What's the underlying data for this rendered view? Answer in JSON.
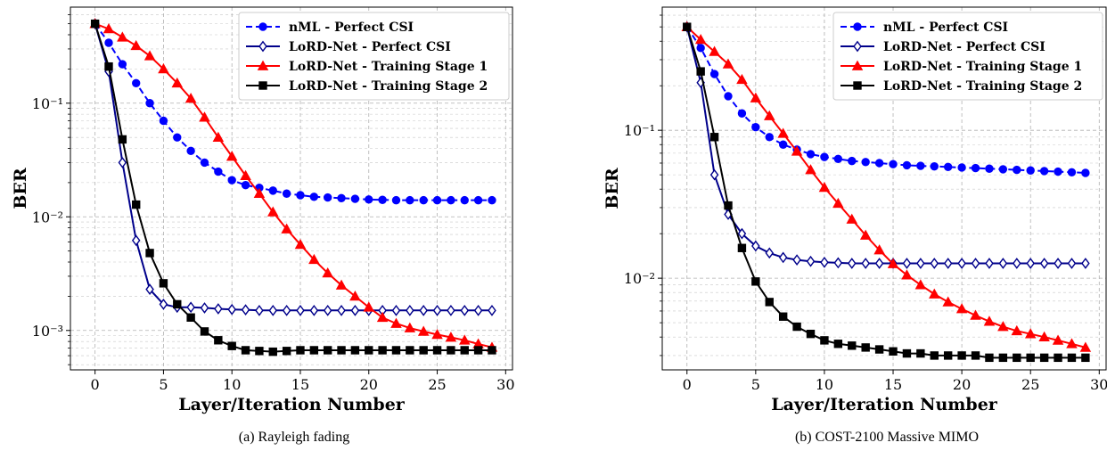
{
  "chart_data": [
    {
      "type": "line",
      "caption": "(a) Rayleigh fading",
      "xlabel": "Layer/Iteration Number",
      "ylabel": "BER",
      "yscale": "log",
      "grid": true,
      "legend_position": "top-right",
      "xlim": [
        -1.8,
        30.5
      ],
      "ylim": [
        0.00045,
        0.7
      ],
      "xticks": [
        0,
        5,
        10,
        15,
        20,
        25,
        30
      ],
      "yticks": [
        0.1,
        0.01,
        0.001
      ],
      "ytick_labels": [
        "10⁻¹",
        "10⁻²",
        "10⁻³"
      ],
      "x": [
        0,
        1,
        2,
        3,
        4,
        5,
        6,
        7,
        8,
        9,
        10,
        11,
        12,
        13,
        14,
        15,
        16,
        17,
        18,
        19,
        20,
        21,
        22,
        23,
        24,
        25,
        26,
        27,
        28,
        29
      ],
      "series": [
        {
          "name": "nML - Perfect CSI",
          "color": "#0000ff",
          "dash": true,
          "marker": "circle",
          "values": [
            0.5,
            0.34,
            0.22,
            0.15,
            0.1,
            0.07,
            0.05,
            0.038,
            0.03,
            0.025,
            0.021,
            0.019,
            0.018,
            0.017,
            0.016,
            0.0155,
            0.015,
            0.0148,
            0.0146,
            0.0144,
            0.0142,
            0.0141,
            0.014,
            0.014,
            0.014,
            0.014,
            0.014,
            0.014,
            0.014,
            0.014
          ]
        },
        {
          "name": "LoRD-Net - Perfect CSI",
          "color": "#00008b",
          "dash": false,
          "marker": "diamond",
          "values": [
            0.5,
            0.19,
            0.03,
            0.0062,
            0.0023,
            0.0017,
            0.0016,
            0.0016,
            0.00158,
            0.00155,
            0.00153,
            0.00152,
            0.0015,
            0.0015,
            0.0015,
            0.0015,
            0.0015,
            0.0015,
            0.0015,
            0.0015,
            0.0015,
            0.0015,
            0.0015,
            0.0015,
            0.0015,
            0.0015,
            0.0015,
            0.0015,
            0.0015,
            0.0015
          ]
        },
        {
          "name": "LoRD-Net - Training Stage 1",
          "color": "#ff0000",
          "dash": false,
          "marker": "triangle",
          "values": [
            0.5,
            0.45,
            0.38,
            0.32,
            0.26,
            0.2,
            0.15,
            0.11,
            0.075,
            0.05,
            0.034,
            0.023,
            0.016,
            0.011,
            0.0078,
            0.0057,
            0.0042,
            0.0032,
            0.0025,
            0.002,
            0.0016,
            0.0013,
            0.00115,
            0.00105,
            0.00098,
            0.00092,
            0.00087,
            0.00082,
            0.00076,
            0.00071
          ]
        },
        {
          "name": "LoRD-Net - Training Stage 2",
          "color": "#000000",
          "dash": false,
          "marker": "square",
          "values": [
            0.5,
            0.21,
            0.048,
            0.0128,
            0.0048,
            0.0026,
            0.0017,
            0.0013,
            0.00098,
            0.00082,
            0.00073,
            0.00067,
            0.00066,
            0.00065,
            0.00066,
            0.00067,
            0.00067,
            0.00067,
            0.00067,
            0.00067,
            0.00067,
            0.00067,
            0.00067,
            0.00067,
            0.00067,
            0.00067,
            0.00067,
            0.00067,
            0.00067,
            0.00067
          ]
        }
      ]
    },
    {
      "type": "line",
      "caption": "(b) COST-2100 Massive MIMO",
      "xlabel": "Layer/Iteration Number",
      "ylabel": "BER",
      "yscale": "log",
      "grid": true,
      "legend_position": "top-right",
      "xlim": [
        -1.8,
        30.5
      ],
      "ylim": [
        0.0024,
        0.68
      ],
      "xticks": [
        0,
        5,
        10,
        15,
        20,
        25,
        30
      ],
      "yticks": [
        0.1,
        0.01
      ],
      "ytick_labels": [
        "10⁻¹",
        "10⁻²"
      ],
      "x": [
        0,
        1,
        2,
        3,
        4,
        5,
        6,
        7,
        8,
        9,
        10,
        11,
        12,
        13,
        14,
        15,
        16,
        17,
        18,
        19,
        20,
        21,
        22,
        23,
        24,
        25,
        26,
        27,
        28,
        29
      ],
      "series": [
        {
          "name": "nML - Perfect CSI",
          "color": "#0000ff",
          "dash": true,
          "marker": "circle",
          "values": [
            0.5,
            0.36,
            0.24,
            0.17,
            0.13,
            0.105,
            0.09,
            0.08,
            0.074,
            0.069,
            0.066,
            0.064,
            0.062,
            0.061,
            0.06,
            0.059,
            0.058,
            0.0575,
            0.057,
            0.0565,
            0.056,
            0.0555,
            0.055,
            0.0545,
            0.054,
            0.0535,
            0.053,
            0.0525,
            0.052,
            0.0515
          ]
        },
        {
          "name": "LoRD-Net - Perfect CSI",
          "color": "#00008b",
          "dash": false,
          "marker": "diamond",
          "values": [
            0.5,
            0.21,
            0.05,
            0.027,
            0.02,
            0.0165,
            0.0148,
            0.0138,
            0.0133,
            0.013,
            0.0128,
            0.0127,
            0.0126,
            0.0126,
            0.0126,
            0.0126,
            0.0126,
            0.0126,
            0.0126,
            0.0126,
            0.0126,
            0.0126,
            0.0126,
            0.0126,
            0.0126,
            0.0126,
            0.0126,
            0.0126,
            0.0126,
            0.0126
          ]
        },
        {
          "name": "LoRD-Net - Training Stage 1",
          "color": "#ff0000",
          "dash": false,
          "marker": "triangle",
          "values": [
            0.5,
            0.41,
            0.34,
            0.28,
            0.22,
            0.165,
            0.125,
            0.095,
            0.072,
            0.054,
            0.041,
            0.032,
            0.025,
            0.0195,
            0.0155,
            0.0125,
            0.0105,
            0.009,
            0.0078,
            0.0069,
            0.0062,
            0.0056,
            0.0051,
            0.0047,
            0.0044,
            0.0042,
            0.004,
            0.0038,
            0.0036,
            0.0034
          ]
        },
        {
          "name": "LoRD-Net - Training Stage 2",
          "color": "#000000",
          "dash": false,
          "marker": "square",
          "values": [
            0.5,
            0.25,
            0.09,
            0.031,
            0.016,
            0.0095,
            0.0069,
            0.0055,
            0.0047,
            0.0042,
            0.0038,
            0.0036,
            0.0035,
            0.0034,
            0.0033,
            0.0032,
            0.0031,
            0.0031,
            0.003,
            0.003,
            0.003,
            0.003,
            0.0029,
            0.0029,
            0.0029,
            0.0029,
            0.0029,
            0.0029,
            0.0029,
            0.0029
          ]
        }
      ]
    }
  ]
}
